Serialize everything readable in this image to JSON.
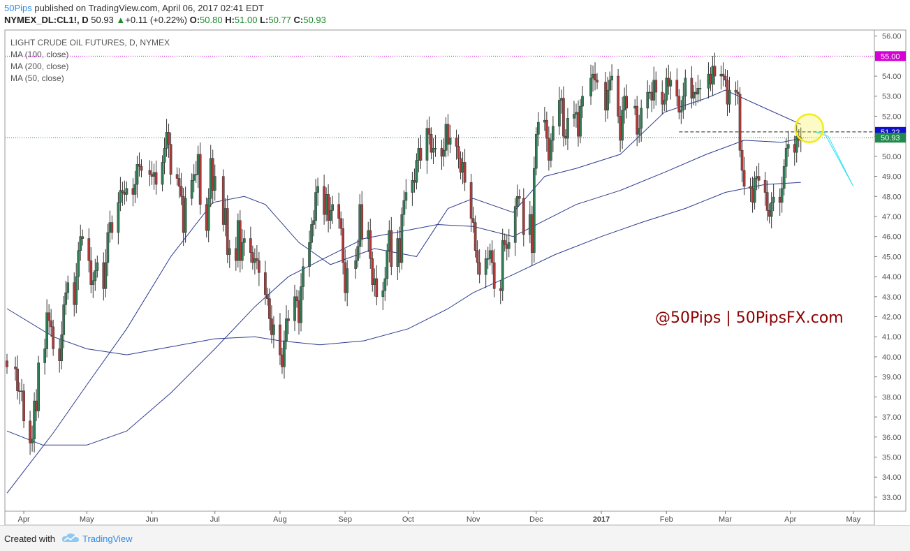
{
  "header": {
    "author": "50Pips",
    "published_text": " published on TradingView.com, April 06, 2017 02:41 EDT",
    "symbol": "NYMEX_DL:CL1!, D",
    "last": "50.93",
    "change_arrow": "▲",
    "change": "+0.11 (+0.22%)",
    "o_label": "O:",
    "o_value": "50.80",
    "h_label": "H:",
    "h_value": "51.00",
    "l_label": "L:",
    "l_value": "50.77",
    "c_label": "C:",
    "c_value": "50.93"
  },
  "legend": {
    "title": "LIGHT CRUDE OIL FUTURES, D, NYMEX",
    "ma100": "MA (100, close)",
    "ma200": "MA (200, close)",
    "ma50": "MA (50, close)"
  },
  "watermark": "@50Pips | 50PipsFX.com",
  "footer": {
    "created_with": "Created with",
    "brand": "TradingView"
  },
  "colors": {
    "bull": "#2e7d55",
    "bear": "#b03a3a",
    "ma": "#2b3a8f",
    "resistance": "#d400d4",
    "current": "#1f8a4c",
    "badge_blue": "#1111cc",
    "projection": "#33e0f0",
    "highlight": "#f2ec1a",
    "watermark": "#8b0000"
  },
  "chart_data": {
    "type": "candlestick",
    "title": "LIGHT CRUDE OIL FUTURES, D, NYMEX",
    "y_ticks": [
      33,
      34,
      35,
      36,
      37,
      38,
      39,
      40,
      41,
      42,
      43,
      44,
      45,
      46,
      47,
      48,
      49,
      50,
      51,
      52,
      53,
      54,
      55,
      56
    ],
    "ylim": [
      32.3,
      56.3
    ],
    "x_labels": [
      "Apr",
      "May",
      "Jun",
      "Jul",
      "Aug",
      "Sep",
      "Oct",
      "Nov",
      "Dec",
      "2017",
      "Feb",
      "Mar",
      "Apr",
      "May"
    ],
    "x_label_dates": [
      "2016-04-01",
      "2016-05-01",
      "2016-06-01",
      "2016-07-01",
      "2016-08-01",
      "2016-09-01",
      "2016-10-01",
      "2016-11-01",
      "2016-12-01",
      "2017-01-01",
      "2017-02-01",
      "2017-03-01",
      "2017-04-01",
      "2017-05-01"
    ],
    "xlim": [
      "2016-03-23",
      "2017-05-11"
    ],
    "closes": [
      [
        "2016-03-24",
        39.5
      ],
      [
        "2016-03-28",
        39.4
      ],
      [
        "2016-03-29",
        38.3
      ],
      [
        "2016-03-30",
        38.3
      ],
      [
        "2016-03-31",
        38.3
      ],
      [
        "2016-04-01",
        36.8
      ],
      [
        "2016-04-04",
        35.7
      ],
      [
        "2016-04-05",
        35.9
      ],
      [
        "2016-04-06",
        37.8
      ],
      [
        "2016-04-07",
        37.3
      ],
      [
        "2016-04-08",
        39.7
      ],
      [
        "2016-04-11",
        40.4
      ],
      [
        "2016-04-12",
        42.2
      ],
      [
        "2016-04-13",
        41.8
      ],
      [
        "2016-04-14",
        41.5
      ],
      [
        "2016-04-15",
        40.4
      ],
      [
        "2016-04-18",
        39.8
      ],
      [
        "2016-04-19",
        41.1
      ],
      [
        "2016-04-20",
        42.6
      ],
      [
        "2016-04-21",
        43.2
      ],
      [
        "2016-04-22",
        43.7
      ],
      [
        "2016-04-25",
        42.6
      ],
      [
        "2016-04-26",
        44.0
      ],
      [
        "2016-04-27",
        45.3
      ],
      [
        "2016-04-28",
        46.0
      ],
      [
        "2016-04-29",
        45.9
      ],
      [
        "2016-05-02",
        44.8
      ],
      [
        "2016-05-03",
        43.6
      ],
      [
        "2016-05-04",
        43.8
      ],
      [
        "2016-05-05",
        44.3
      ],
      [
        "2016-05-06",
        44.7
      ],
      [
        "2016-05-09",
        43.4
      ],
      [
        "2016-05-10",
        44.7
      ],
      [
        "2016-05-11",
        46.2
      ],
      [
        "2016-05-12",
        46.7
      ],
      [
        "2016-05-13",
        46.2
      ],
      [
        "2016-05-16",
        47.7
      ],
      [
        "2016-05-17",
        48.3
      ],
      [
        "2016-05-18",
        48.2
      ],
      [
        "2016-05-19",
        48.1
      ],
      [
        "2016-05-20",
        48.4
      ],
      [
        "2016-05-23",
        48.1
      ],
      [
        "2016-05-24",
        48.6
      ],
      [
        "2016-05-25",
        49.6
      ],
      [
        "2016-05-26",
        49.5
      ],
      [
        "2016-05-27",
        49.3
      ],
      [
        "2016-05-31",
        49.1
      ],
      [
        "2016-06-01",
        49.0
      ],
      [
        "2016-06-02",
        49.2
      ],
      [
        "2016-06-03",
        48.6
      ],
      [
        "2016-06-06",
        49.7
      ],
      [
        "2016-06-07",
        50.4
      ],
      [
        "2016-06-08",
        51.2
      ],
      [
        "2016-06-09",
        50.6
      ],
      [
        "2016-06-10",
        49.1
      ],
      [
        "2016-06-13",
        48.9
      ],
      [
        "2016-06-14",
        48.5
      ],
      [
        "2016-06-15",
        48.0
      ],
      [
        "2016-06-16",
        46.2
      ],
      [
        "2016-06-17",
        47.9
      ],
      [
        "2016-06-20",
        48.8
      ],
      [
        "2016-06-21",
        49.1
      ],
      [
        "2016-06-22",
        49.1
      ],
      [
        "2016-06-23",
        50.1
      ],
      [
        "2016-06-24",
        47.6
      ],
      [
        "2016-06-27",
        46.3
      ],
      [
        "2016-06-28",
        47.9
      ],
      [
        "2016-06-29",
        49.9
      ],
      [
        "2016-06-30",
        48.3
      ],
      [
        "2016-07-01",
        49.0
      ],
      [
        "2016-07-05",
        46.6
      ],
      [
        "2016-07-06",
        47.4
      ],
      [
        "2016-07-07",
        45.1
      ],
      [
        "2016-07-08",
        45.4
      ],
      [
        "2016-07-11",
        44.8
      ],
      [
        "2016-07-12",
        46.8
      ],
      [
        "2016-07-13",
        44.8
      ],
      [
        "2016-07-14",
        45.7
      ],
      [
        "2016-07-15",
        45.9
      ],
      [
        "2016-07-18",
        45.2
      ],
      [
        "2016-07-19",
        44.7
      ],
      [
        "2016-07-20",
        44.9
      ],
      [
        "2016-07-21",
        44.8
      ],
      [
        "2016-07-22",
        44.2
      ],
      [
        "2016-07-25",
        43.1
      ],
      [
        "2016-07-26",
        42.9
      ],
      [
        "2016-07-27",
        41.9
      ],
      [
        "2016-07-28",
        41.1
      ],
      [
        "2016-07-29",
        41.6
      ],
      [
        "2016-08-01",
        40.1
      ],
      [
        "2016-08-02",
        39.5
      ],
      [
        "2016-08-03",
        40.8
      ],
      [
        "2016-08-04",
        41.9
      ],
      [
        "2016-08-05",
        41.8
      ],
      [
        "2016-08-08",
        43.0
      ],
      [
        "2016-08-09",
        42.8
      ],
      [
        "2016-08-10",
        41.7
      ],
      [
        "2016-08-11",
        43.5
      ],
      [
        "2016-08-12",
        44.5
      ],
      [
        "2016-08-15",
        45.7
      ],
      [
        "2016-08-16",
        46.6
      ],
      [
        "2016-08-17",
        46.8
      ],
      [
        "2016-08-18",
        48.2
      ],
      [
        "2016-08-19",
        48.5
      ],
      [
        "2016-08-22",
        47.1
      ],
      [
        "2016-08-23",
        48.1
      ],
      [
        "2016-08-24",
        46.8
      ],
      [
        "2016-08-25",
        47.3
      ],
      [
        "2016-08-26",
        47.6
      ],
      [
        "2016-08-29",
        46.9
      ],
      [
        "2016-08-30",
        46.4
      ],
      [
        "2016-08-31",
        44.7
      ],
      [
        "2016-09-01",
        43.2
      ],
      [
        "2016-09-02",
        44.4
      ],
      [
        "2016-09-06",
        44.8
      ],
      [
        "2016-09-07",
        45.5
      ],
      [
        "2016-09-08",
        47.6
      ],
      [
        "2016-09-09",
        45.9
      ],
      [
        "2016-09-12",
        46.3
      ],
      [
        "2016-09-13",
        44.9
      ],
      [
        "2016-09-14",
        43.6
      ],
      [
        "2016-09-15",
        43.9
      ],
      [
        "2016-09-16",
        43.0
      ],
      [
        "2016-09-19",
        43.3
      ],
      [
        "2016-09-20",
        43.9
      ],
      [
        "2016-09-21",
        45.3
      ],
      [
        "2016-09-22",
        46.3
      ],
      [
        "2016-09-23",
        44.5
      ],
      [
        "2016-09-26",
        45.9
      ],
      [
        "2016-09-27",
        44.7
      ],
      [
        "2016-09-28",
        47.1
      ],
      [
        "2016-09-29",
        47.8
      ],
      [
        "2016-09-30",
        48.2
      ],
      [
        "2016-10-03",
        48.8
      ],
      [
        "2016-10-04",
        48.7
      ],
      [
        "2016-10-05",
        49.8
      ],
      [
        "2016-10-06",
        50.4
      ],
      [
        "2016-10-07",
        49.8
      ],
      [
        "2016-10-10",
        51.4
      ],
      [
        "2016-10-11",
        51.1
      ],
      [
        "2016-10-12",
        50.2
      ],
      [
        "2016-10-13",
        50.4
      ],
      [
        "2016-10-14",
        50.4
      ],
      [
        "2016-10-17",
        50.0
      ],
      [
        "2016-10-18",
        50.3
      ],
      [
        "2016-10-19",
        51.6
      ],
      [
        "2016-10-20",
        50.6
      ],
      [
        "2016-10-21",
        50.9
      ],
      [
        "2016-10-24",
        50.5
      ],
      [
        "2016-10-25",
        49.9
      ],
      [
        "2016-10-26",
        49.2
      ],
      [
        "2016-10-27",
        49.7
      ],
      [
        "2016-10-28",
        48.7
      ],
      [
        "2016-10-31",
        46.9
      ],
      [
        "2016-11-01",
        46.7
      ],
      [
        "2016-11-02",
        45.3
      ],
      [
        "2016-11-03",
        44.7
      ],
      [
        "2016-11-04",
        44.1
      ],
      [
        "2016-11-07",
        44.9
      ],
      [
        "2016-11-08",
        44.9
      ],
      [
        "2016-11-09",
        45.3
      ],
      [
        "2016-11-10",
        44.7
      ],
      [
        "2016-11-11",
        43.4
      ],
      [
        "2016-11-14",
        43.3
      ],
      [
        "2016-11-15",
        45.8
      ],
      [
        "2016-11-16",
        45.6
      ],
      [
        "2016-11-17",
        45.4
      ],
      [
        "2016-11-18",
        45.7
      ],
      [
        "2016-11-21",
        47.5
      ],
      [
        "2016-11-22",
        48.0
      ],
      [
        "2016-11-23",
        47.9
      ],
      [
        "2016-11-25",
        46.1
      ],
      [
        "2016-11-28",
        47.1
      ],
      [
        "2016-11-29",
        45.2
      ],
      [
        "2016-11-30",
        49.4
      ],
      [
        "2016-12-01",
        51.1
      ],
      [
        "2016-12-02",
        51.7
      ],
      [
        "2016-12-05",
        51.8
      ],
      [
        "2016-12-06",
        50.9
      ],
      [
        "2016-12-07",
        49.8
      ],
      [
        "2016-12-08",
        50.8
      ],
      [
        "2016-12-09",
        51.5
      ],
      [
        "2016-12-12",
        52.8
      ],
      [
        "2016-12-13",
        52.9
      ],
      [
        "2016-12-14",
        51.0
      ],
      [
        "2016-12-15",
        50.9
      ],
      [
        "2016-12-16",
        51.9
      ],
      [
        "2016-12-19",
        52.1
      ],
      [
        "2016-12-20",
        52.2
      ],
      [
        "2016-12-21",
        51.0
      ],
      [
        "2016-12-22",
        52.5
      ],
      [
        "2016-12-23",
        53.0
      ],
      [
        "2016-12-27",
        53.9
      ],
      [
        "2016-12-28",
        54.1
      ],
      [
        "2016-12-29",
        53.8
      ],
      [
        "2016-12-30",
        53.7
      ],
      [
        "2017-01-03",
        52.3
      ],
      [
        "2017-01-04",
        53.3
      ],
      [
        "2017-01-05",
        53.8
      ],
      [
        "2017-01-06",
        54.0
      ],
      [
        "2017-01-09",
        52.0
      ],
      [
        "2017-01-10",
        50.8
      ],
      [
        "2017-01-11",
        52.3
      ],
      [
        "2017-01-12",
        53.0
      ],
      [
        "2017-01-13",
        52.4
      ],
      [
        "2017-01-17",
        52.5
      ],
      [
        "2017-01-18",
        51.1
      ],
      [
        "2017-01-19",
        51.4
      ],
      [
        "2017-01-20",
        52.4
      ],
      [
        "2017-01-23",
        53.2
      ],
      [
        "2017-01-24",
        53.2
      ],
      [
        "2017-01-25",
        52.8
      ],
      [
        "2017-01-26",
        53.8
      ],
      [
        "2017-01-27",
        53.2
      ],
      [
        "2017-01-30",
        52.6
      ],
      [
        "2017-01-31",
        52.8
      ],
      [
        "2017-02-01",
        53.9
      ],
      [
        "2017-02-02",
        53.5
      ],
      [
        "2017-02-03",
        53.8
      ],
      [
        "2017-02-06",
        53.0
      ],
      [
        "2017-02-07",
        52.2
      ],
      [
        "2017-02-08",
        52.3
      ],
      [
        "2017-02-09",
        53.0
      ],
      [
        "2017-02-10",
        53.9
      ],
      [
        "2017-02-13",
        52.9
      ],
      [
        "2017-02-14",
        53.2
      ],
      [
        "2017-02-15",
        53.1
      ],
      [
        "2017-02-16",
        53.4
      ],
      [
        "2017-02-17",
        53.4
      ],
      [
        "2017-02-21",
        54.1
      ],
      [
        "2017-02-22",
        53.6
      ],
      [
        "2017-02-23",
        54.5
      ],
      [
        "2017-02-24",
        54.0
      ],
      [
        "2017-02-27",
        54.1
      ],
      [
        "2017-02-28",
        54.0
      ],
      [
        "2017-03-01",
        53.8
      ],
      [
        "2017-03-02",
        52.6
      ],
      [
        "2017-03-03",
        53.3
      ],
      [
        "2017-03-06",
        53.2
      ],
      [
        "2017-03-07",
        53.1
      ],
      [
        "2017-03-08",
        50.3
      ],
      [
        "2017-03-09",
        49.3
      ],
      [
        "2017-03-10",
        48.5
      ],
      [
        "2017-03-13",
        48.4
      ],
      [
        "2017-03-14",
        47.7
      ],
      [
        "2017-03-15",
        48.9
      ],
      [
        "2017-03-16",
        49.0
      ],
      [
        "2017-03-17",
        48.8
      ],
      [
        "2017-03-20",
        48.2
      ],
      [
        "2017-03-21",
        47.3
      ],
      [
        "2017-03-22",
        47.0
      ],
      [
        "2017-03-23",
        47.7
      ],
      [
        "2017-03-24",
        47.97
      ],
      [
        "2017-03-27",
        47.7
      ],
      [
        "2017-03-28",
        48.4
      ],
      [
        "2017-03-29",
        49.5
      ],
      [
        "2017-03-30",
        50.4
      ],
      [
        "2017-03-31",
        50.6
      ],
      [
        "2017-04-03",
        50.2
      ],
      [
        "2017-04-04",
        51.0
      ],
      [
        "2017-04-05",
        50.8
      ],
      [
        "2017-04-06",
        50.93
      ]
    ],
    "ma50_points": [
      [
        "2016-03-24",
        33.2
      ],
      [
        "2016-04-15",
        36.2
      ],
      [
        "2016-05-01",
        38.6
      ],
      [
        "2016-05-20",
        41.4
      ],
      [
        "2016-06-10",
        45.0
      ],
      [
        "2016-06-30",
        47.7
      ],
      [
        "2016-07-15",
        48.0
      ],
      [
        "2016-07-25",
        47.6
      ],
      [
        "2016-08-10",
        45.7
      ],
      [
        "2016-08-25",
        44.6
      ],
      [
        "2016-09-15",
        45.4
      ],
      [
        "2016-10-05",
        45.0
      ],
      [
        "2016-10-20",
        47.4
      ],
      [
        "2016-11-01",
        47.9
      ],
      [
        "2016-11-20",
        47.2
      ],
      [
        "2016-12-05",
        49.0
      ],
      [
        "2016-12-20",
        49.4
      ],
      [
        "2017-01-10",
        50.1
      ],
      [
        "2017-01-31",
        52.2
      ],
      [
        "2017-02-20",
        52.9
      ],
      [
        "2017-03-01",
        53.3
      ],
      [
        "2017-03-20",
        52.4
      ],
      [
        "2017-04-06",
        51.6
      ]
    ],
    "ma100_points": [
      [
        "2016-03-24",
        42.4
      ],
      [
        "2016-04-15",
        41.0
      ],
      [
        "2016-05-01",
        40.4
      ],
      [
        "2016-05-20",
        40.1
      ],
      [
        "2016-06-10",
        40.5
      ],
      [
        "2016-07-01",
        40.9
      ],
      [
        "2016-07-20",
        41.0
      ],
      [
        "2016-08-01",
        40.8
      ],
      [
        "2016-08-20",
        40.6
      ],
      [
        "2016-09-10",
        40.8
      ],
      [
        "2016-10-01",
        41.4
      ],
      [
        "2016-10-20",
        42.4
      ],
      [
        "2016-11-01",
        43.2
      ],
      [
        "2016-11-20",
        44.1
      ],
      [
        "2016-12-10",
        45.1
      ],
      [
        "2017-01-01",
        46.0
      ],
      [
        "2017-01-20",
        46.7
      ],
      [
        "2017-02-10",
        47.4
      ],
      [
        "2017-03-01",
        48.2
      ],
      [
        "2017-03-20",
        48.6
      ],
      [
        "2017-04-06",
        48.7
      ]
    ],
    "ma200_points": [
      [
        "2016-03-24",
        36.3
      ],
      [
        "2016-04-10",
        35.6
      ],
      [
        "2016-05-01",
        35.6
      ],
      [
        "2016-05-20",
        36.3
      ],
      [
        "2016-06-10",
        38.2
      ],
      [
        "2016-07-01",
        40.4
      ],
      [
        "2016-07-20",
        42.5
      ],
      [
        "2016-08-05",
        44.0
      ],
      [
        "2016-08-20",
        44.8
      ],
      [
        "2016-09-10",
        45.9
      ],
      [
        "2016-09-25",
        46.2
      ],
      [
        "2016-10-15",
        46.6
      ],
      [
        "2016-11-01",
        46.5
      ],
      [
        "2016-11-20",
        46.0
      ],
      [
        "2016-12-05",
        46.8
      ],
      [
        "2016-12-20",
        47.6
      ],
      [
        "2017-01-10",
        48.3
      ],
      [
        "2017-01-31",
        49.2
      ],
      [
        "2017-02-20",
        50.1
      ],
      [
        "2017-03-10",
        50.8
      ],
      [
        "2017-03-28",
        50.7
      ],
      [
        "2017-04-06",
        50.9
      ]
    ],
    "resistance_level": 55.0,
    "resistance_label": "55.00",
    "dashed_level": 51.22,
    "dashed_label": "51.22",
    "dashed_start": "2017-02-07",
    "current_level": 50.93,
    "current_label": "50.93",
    "projection": [
      [
        "2017-04-13",
        51.2
      ],
      [
        "2017-04-17",
        51.2
      ],
      [
        "2017-05-01",
        48.5
      ],
      [
        "2017-04-19",
        51.0
      ],
      [
        "2017-04-13",
        51.2
      ]
    ],
    "highlight_center": [
      "2017-04-10",
      51.4
    ]
  }
}
